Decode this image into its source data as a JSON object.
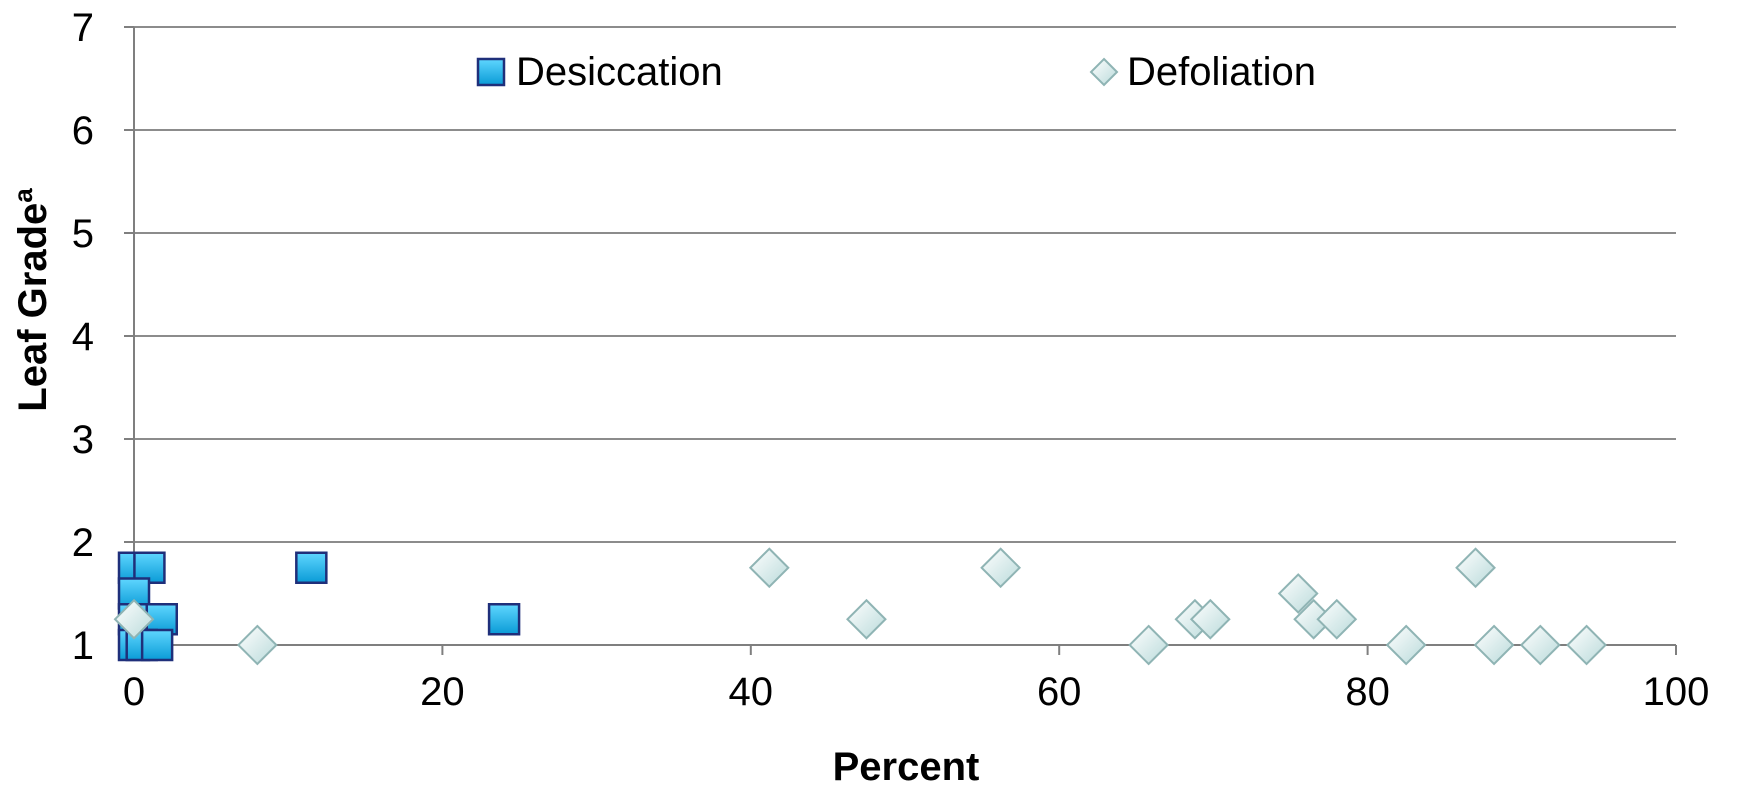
{
  "chart_data": {
    "type": "scatter",
    "xlabel": "Percent",
    "ylabel": "Leaf Grade",
    "ylabel_superscript": "a",
    "xlim": [
      0,
      100
    ],
    "ylim": [
      1,
      7
    ],
    "xticks": [
      0,
      20,
      40,
      60,
      80,
      100
    ],
    "yticks": [
      1,
      2,
      3,
      4,
      5,
      6,
      7
    ],
    "grid": "horizontal",
    "legend_position": "top",
    "series": [
      {
        "name": "Desiccation",
        "marker": "square",
        "color": "#1fb4e8",
        "edge_color": "#1f2f7a",
        "points": [
          {
            "x": 0,
            "y": 1.75
          },
          {
            "x": 1,
            "y": 1.75
          },
          {
            "x": 0,
            "y": 1.5
          },
          {
            "x": 0,
            "y": 1.25
          },
          {
            "x": 1.8,
            "y": 1.25
          },
          {
            "x": 0,
            "y": 1
          },
          {
            "x": 0.5,
            "y": 1
          },
          {
            "x": 1.5,
            "y": 1
          },
          {
            "x": 11.5,
            "y": 1.75
          },
          {
            "x": 24,
            "y": 1.25
          }
        ]
      },
      {
        "name": "Defoliation",
        "marker": "diamond",
        "color": "#dff0f0",
        "edge_color": "#8fb4b4",
        "points": [
          {
            "x": 0,
            "y": 1.25
          },
          {
            "x": 8,
            "y": 1
          },
          {
            "x": 41.2,
            "y": 1.75
          },
          {
            "x": 47.5,
            "y": 1.25
          },
          {
            "x": 56.2,
            "y": 1.75
          },
          {
            "x": 65.8,
            "y": 1
          },
          {
            "x": 68.8,
            "y": 1.25
          },
          {
            "x": 69.8,
            "y": 1.25
          },
          {
            "x": 75.5,
            "y": 1.5
          },
          {
            "x": 76.5,
            "y": 1.25
          },
          {
            "x": 78,
            "y": 1.25
          },
          {
            "x": 82.5,
            "y": 1
          },
          {
            "x": 87,
            "y": 1.75
          },
          {
            "x": 88.2,
            "y": 1
          },
          {
            "x": 91.2,
            "y": 1
          },
          {
            "x": 94.2,
            "y": 1
          }
        ]
      }
    ]
  }
}
